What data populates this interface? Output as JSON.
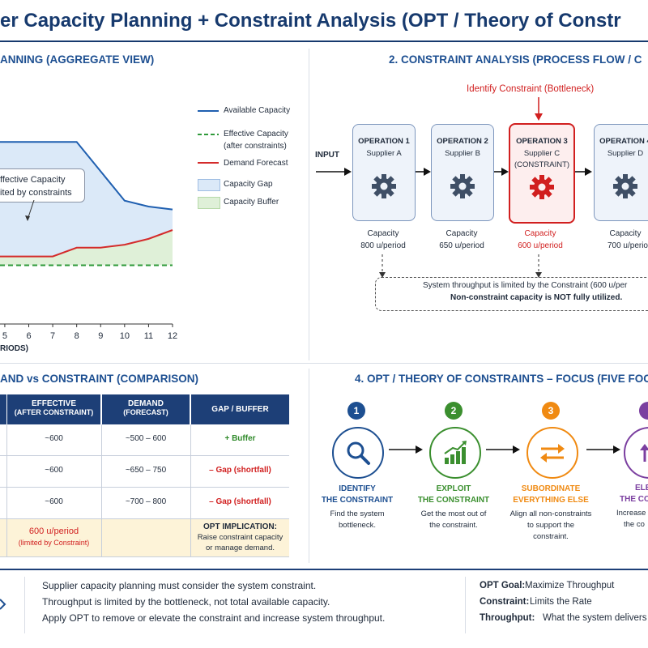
{
  "title": "er Capacity Planning + Constraint Analysis (OPT / Theory of Constr",
  "section1": {
    "heading": "ANNING (AGGREGATE VIEW)",
    "annotation_line1": "ffective Capacity",
    "annotation_line2": "ited by constraints",
    "x_axis_label": "RIODS)",
    "legend": {
      "available": "Available Capacity",
      "effective_l1": "Effective Capacity",
      "effective_l2": "(after constraints)",
      "demand": "Demand Forecast",
      "gap": "Capacity Gap",
      "buffer": "Capacity Buffer"
    },
    "colors": {
      "available": "#1f5fb0",
      "effective": "#2f9a3a",
      "demand": "#d42b2b",
      "gap": "#dbe9f8",
      "buffer": "#dff0d8"
    }
  },
  "chart_data": {
    "type": "line",
    "x": [
      4.8,
      5,
      6,
      7,
      8,
      9,
      10,
      11,
      12
    ],
    "x_tick_labels": [
      "5",
      "6",
      "7",
      "8",
      "9",
      "10",
      "11",
      "12"
    ],
    "series": [
      {
        "name": "Available Capacity",
        "values": [
          62,
          62,
          62,
          62,
          62,
          52,
          42,
          40,
          39
        ]
      },
      {
        "name": "Effective Capacity",
        "values": [
          20,
          20,
          20,
          20,
          20,
          20,
          20,
          20,
          20
        ]
      },
      {
        "name": "Demand Forecast",
        "values": [
          23,
          23,
          23,
          23,
          26,
          26,
          27,
          29,
          32
        ]
      }
    ],
    "xlim": [
      4.8,
      12
    ],
    "ylim": [
      0,
      80
    ]
  },
  "section2": {
    "heading": "2. CONSTRAINT ANALYSIS (PROCESS FLOW / C",
    "identify_label": "Identify Constraint (Bottleneck)",
    "input_label": "INPUT",
    "operations": [
      {
        "op": "OPERATION 1",
        "supplier": "Supplier A",
        "extra": "",
        "cap_label": "Capacity",
        "cap": "800 u/period",
        "constraint": false
      },
      {
        "op": "OPERATION 2",
        "supplier": "Supplier B",
        "extra": "",
        "cap_label": "Capacity",
        "cap": "650 u/period",
        "constraint": false
      },
      {
        "op": "OPERATION 3",
        "supplier": "Supplier C",
        "extra": "(CONSTRAINT)",
        "cap_label": "Capacity",
        "cap": "600 u/period",
        "constraint": true
      },
      {
        "op": "OPERATION 4",
        "supplier": "Supplier D",
        "extra": "",
        "cap_label": "Capacity",
        "cap": "700 u/perio",
        "constraint": false
      }
    ],
    "note_line1": "System throughput is limited by the Constraint (600 u/per",
    "note_line2": "Non-constraint capacity is NOT fully utilized."
  },
  "section3": {
    "heading": "AND vs CONSTRAINT (COMPARISON)",
    "headers": {
      "effective_l1": "EFFECTIVE",
      "effective_l2": "(AFTER CONSTRAINT)",
      "demand_l1": "DEMAND",
      "demand_l2": "(FORECAST)",
      "gap": "GAP / BUFFER"
    },
    "rows": [
      {
        "effective": "~600",
        "demand": "~500 – 600",
        "gap": "+ Buffer",
        "gap_type": "buffer"
      },
      {
        "effective": "~600",
        "demand": "~650 – 750",
        "gap": "– Gap (shortfall)",
        "gap_type": "gap"
      },
      {
        "effective": "~600",
        "demand": "~700 – 800",
        "gap": "– Gap (shortfall)",
        "gap_type": "gap"
      }
    ],
    "summary": {
      "effective_l1": "600 u/period",
      "effective_l2": "(limited by Constraint)",
      "impl_title": "OPT IMPLICATION:",
      "impl_l1": "Raise constraint capacity",
      "impl_l2": "or manage demand."
    }
  },
  "section4": {
    "heading": "4. OPT / THEORY OF CONSTRAINTS – FOCUS (FIVE FOCU",
    "steps": [
      {
        "num": "1",
        "title_l1": "IDENTIFY",
        "title_l2": "THE CONSTRAINT",
        "desc_l1": "Find the system",
        "desc_l2": "bottleneck.",
        "desc_l3": "",
        "color": "#1d4f91",
        "icon": "magnifier-icon"
      },
      {
        "num": "2",
        "title_l1": "EXPLOIT",
        "title_l2": "THE CONSTRAINT",
        "desc_l1": "Get the most out of",
        "desc_l2": "the constraint.",
        "desc_l3": "",
        "color": "#3b8f2f",
        "icon": "growth-chart-icon"
      },
      {
        "num": "3",
        "title_l1": "SUBORDINATE",
        "title_l2": "EVERYTHING ELSE",
        "desc_l1": "Align all non-constraints",
        "desc_l2": "to support the",
        "desc_l3": "constraint.",
        "color": "#f08a12",
        "icon": "swap-arrows-icon"
      },
      {
        "num": "4",
        "title_l1": "ELE",
        "title_l2": "THE CO",
        "desc_l1": "Increase",
        "desc_l2": "the co",
        "desc_l3": "",
        "color": "#7b3fa0",
        "icon": "up-arrow-icon"
      }
    ]
  },
  "footer": {
    "lines": [
      "Supplier capacity planning must consider the system constraint.",
      "Throughput is limited by the bottleneck, not total available capacity.",
      "Apply OPT to remove or elevate the constraint and increase system throughput."
    ],
    "defs": [
      {
        "term": "OPT Goal:",
        "value": "Maximize Throughput"
      },
      {
        "term": "Constraint:",
        "value": "Limits the Rate"
      },
      {
        "term": "Throughput:",
        "value": "What the system delivers"
      }
    ]
  }
}
